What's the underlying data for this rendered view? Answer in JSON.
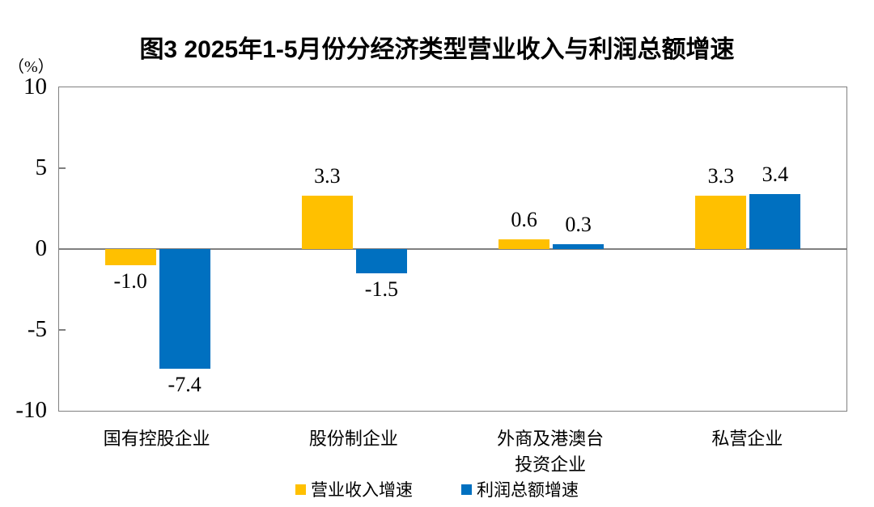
{
  "title": "图3 2025年1-5月份分经济类型营业收入与利润总额增速",
  "colors": {
    "revenue_bar": "#FFC000",
    "profit_bar": "#0070C0",
    "axis": "#808080",
    "text": "#000000"
  },
  "chart_data": {
    "type": "bar",
    "categories": [
      "国有控股企业",
      "股份制企业",
      "外商及港澳台\n投资企业",
      "私营企业"
    ],
    "series": [
      {
        "name": "营业收入增速",
        "key": "revenue",
        "color": "#FFC000",
        "values": [
          -1.0,
          3.3,
          0.6,
          3.3
        ]
      },
      {
        "name": "利润总额增速",
        "key": "profit",
        "color": "#0070C0",
        "values": [
          -7.4,
          -1.5,
          0.3,
          3.4
        ]
      }
    ],
    "value_labels": {
      "revenue": [
        "-1.0",
        "3.3",
        "0.6",
        "3.3"
      ],
      "profit": [
        "-7.4",
        "-1.5",
        "0.3",
        "3.4"
      ]
    },
    "ylabel": "（%）",
    "xlabel": "",
    "ylim": [
      -10,
      10
    ],
    "yticks": [
      10,
      5,
      0,
      -5,
      -10
    ],
    "grid": false,
    "legend_position": "bottom"
  }
}
